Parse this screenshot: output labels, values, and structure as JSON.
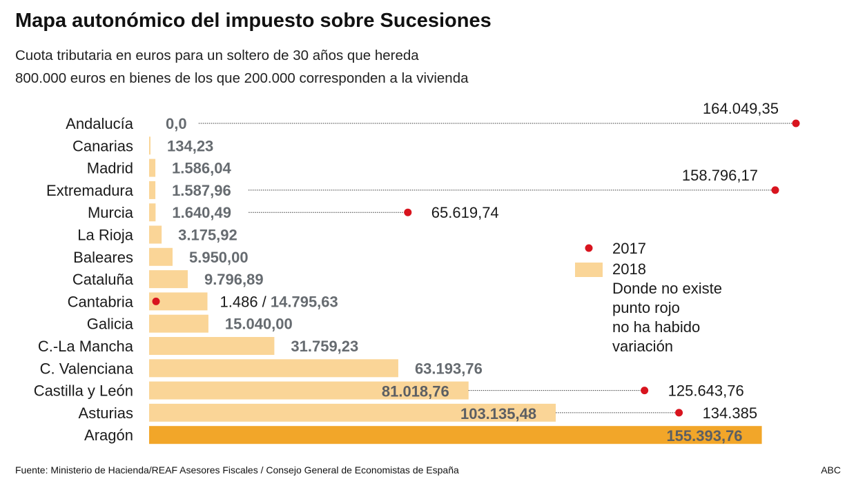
{
  "title": "Mapa autonómico del impuesto sobre Sucesiones",
  "subtitle_line1": "Cuota tributaria en euros para un soltero de 30 años que hereda",
  "subtitle_line2": "800.000 euros en bienes de los que 200.000 corresponden a la vivienda",
  "source": "Fuente: Ministerio de Hacienda/REAF Asesores Fiscales / Consejo General de Economistas de España",
  "credit": "ABC",
  "colors": {
    "bar_2018": "#fad597",
    "bar_highlight": "#f2a629",
    "dot_2017": "#d8141e",
    "value_text": "#666b70"
  },
  "legend": {
    "item_2017": "2017",
    "item_2018": "2018",
    "note_lines": [
      "Donde no existe",
      "punto rojo",
      "no ha habido",
      "variación"
    ]
  },
  "chart_data": {
    "type": "bar",
    "orientation": "horizontal",
    "title": "Mapa autonómico del impuesto sobre Sucesiones",
    "categories": [
      "Andalucía",
      "Canarias",
      "Madrid",
      "Extremadura",
      "Murcia",
      "La Rioja",
      "Baleares",
      "Cataluña",
      "Cantabria",
      "Galicia",
      "C.-La Mancha",
      "C. Valenciana",
      "Castilla y León",
      "Asturias",
      "Aragón"
    ],
    "series": [
      {
        "name": "2018",
        "values": [
          0.0,
          134.23,
          1586.04,
          1587.96,
          1640.49,
          3175.92,
          5950.0,
          9796.89,
          14795.63,
          15040.0,
          31759.23,
          63193.76,
          81018.76,
          103135.48,
          155393.76
        ],
        "labels": [
          "0,0",
          "134,23",
          "1.586,04",
          "1.587,96",
          "1.640,49",
          "3.175,92",
          "5.950,00",
          "9.796,89",
          "14.795,63",
          "15.040,00",
          "31.759,23",
          "63.193,76",
          "81.018,76",
          "103.135,48",
          "155.393,76"
        ]
      },
      {
        "name": "2017",
        "values": [
          164049.35,
          null,
          null,
          158796.17,
          65619.74,
          null,
          null,
          null,
          1486,
          null,
          null,
          null,
          125643.76,
          134385,
          null
        ],
        "labels": [
          "164.049,35",
          null,
          null,
          "158.796,17",
          "65.619,74",
          null,
          null,
          null,
          "1.486",
          null,
          null,
          null,
          "125.643,76",
          "134.385",
          null
        ]
      }
    ],
    "xlim": [
      0,
      164049.35
    ],
    "legend_position": "right"
  }
}
